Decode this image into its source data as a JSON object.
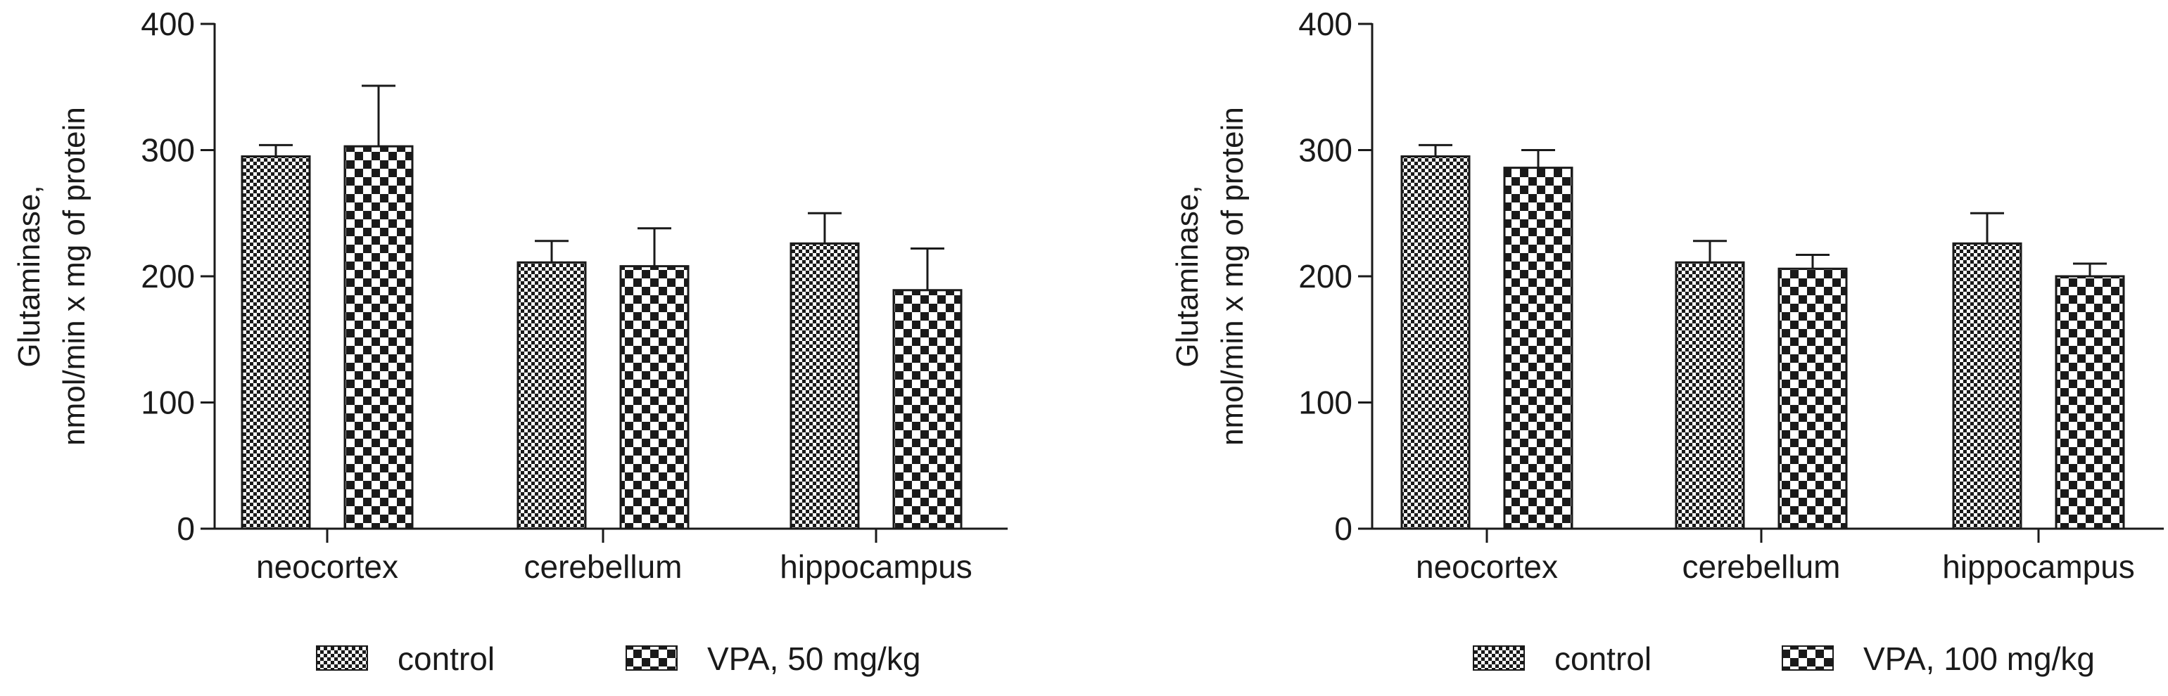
{
  "chart_data": [
    {
      "type": "bar",
      "title": "",
      "xlabel": "",
      "ylabel_line1": "Glutaminase,",
      "ylabel_line2": "nmol/min x mg of protein",
      "ylim": [
        0,
        400
      ],
      "yticks": [
        0,
        100,
        200,
        300,
        400
      ],
      "categories": [
        "neocortex",
        "cerebellum",
        "hippocampus"
      ],
      "series": [
        {
          "name": "control",
          "pattern": "fine",
          "values": [
            295,
            211,
            226
          ],
          "errors": [
            9,
            17,
            24
          ]
        },
        {
          "name": "VPA, 50 mg/kg",
          "pattern": "coarse",
          "values": [
            303,
            208,
            189
          ],
          "errors": [
            48,
            30,
            33
          ]
        }
      ],
      "legend": [
        "control",
        "VPA, 50 mg/kg"
      ],
      "legend_placement": "bottom"
    },
    {
      "type": "bar",
      "title": "",
      "xlabel": "",
      "ylabel_line1": "Glutaminase,",
      "ylabel_line2": "nmol/min x mg of protein",
      "ylim": [
        0,
        400
      ],
      "yticks": [
        0,
        100,
        200,
        300,
        400
      ],
      "categories": [
        "neocortex",
        "cerebellum",
        "hippocampus"
      ],
      "series": [
        {
          "name": "control",
          "pattern": "fine",
          "values": [
            295,
            211,
            226
          ],
          "errors": [
            9,
            17,
            24
          ]
        },
        {
          "name": "VPA, 100 mg/kg",
          "pattern": "coarse",
          "values": [
            286,
            206,
            200
          ],
          "errors": [
            14,
            11,
            10
          ]
        }
      ],
      "legend": [
        "control",
        "VPA, 100 mg/kg"
      ],
      "legend_placement": "bottom"
    }
  ],
  "colors": {
    "ink": "#1a1a1a",
    "background": "#ffffff"
  }
}
